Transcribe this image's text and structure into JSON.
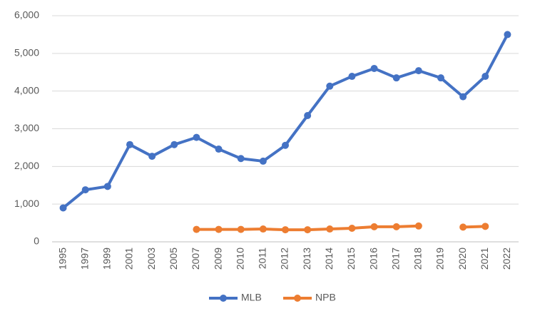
{
  "chart_data": {
    "type": "line",
    "categories": [
      "1995",
      "1997",
      "1999",
      "2001",
      "2003",
      "2005",
      "2007",
      "2009",
      "2010",
      "2011",
      "2012",
      "2013",
      "2014",
      "2015",
      "2016",
      "2017",
      "2018",
      "2019",
      "2020",
      "2021",
      "2022"
    ],
    "series": [
      {
        "name": "MLB",
        "color": "#4472c4",
        "values": [
          900,
          1380,
          1470,
          2580,
          2270,
          2580,
          2770,
          2460,
          2210,
          2140,
          2560,
          3350,
          4130,
          4390,
          4600,
          4350,
          4540,
          4350,
          3850,
          4390,
          5500
        ]
      },
      {
        "name": "NPB",
        "color": "#ed7d31",
        "values": [
          null,
          null,
          null,
          null,
          null,
          null,
          330,
          330,
          330,
          340,
          320,
          320,
          340,
          360,
          400,
          400,
          420,
          null,
          390,
          410,
          null
        ]
      }
    ],
    "ylim": [
      0,
      6000
    ],
    "yticks": [
      0,
      {
        "value": 1000,
        "label": "1,000"
      },
      {
        "value": 2000,
        "label": "2,000"
      },
      {
        "value": 3000,
        "label": "3,000"
      },
      {
        "value": 4000,
        "label": "4,000"
      },
      {
        "value": 5000,
        "label": "5,000"
      },
      {
        "value": 6000,
        "label": "6,000"
      }
    ],
    "grid": true,
    "legend": "bottom"
  }
}
